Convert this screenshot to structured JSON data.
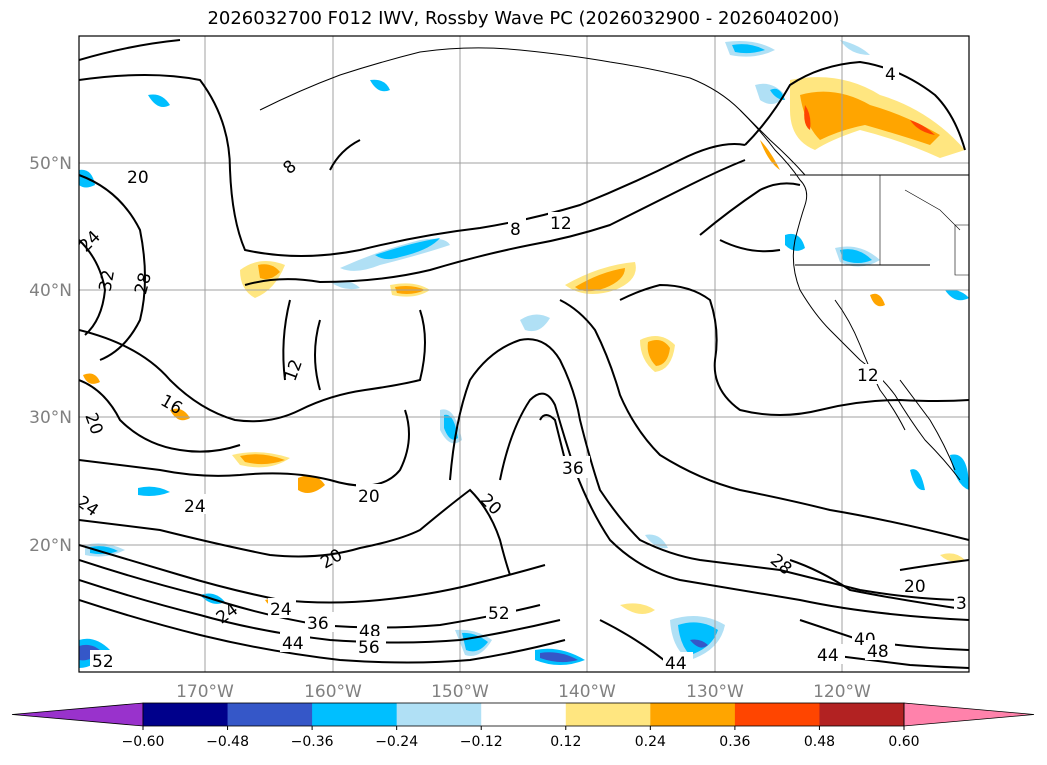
{
  "title": "2026032700 F012 IWV, Rossby Wave PC (2026032900 - 2026040200)",
  "lat_labels": [
    "50°N",
    "40°N",
    "30°N",
    "20°N"
  ],
  "lon_labels": [
    "170°W",
    "160°W",
    "150°W",
    "140°W",
    "130°W",
    "120°W"
  ],
  "contour_labels": [
    "4",
    "8",
    "8",
    "12",
    "20",
    "28",
    "32",
    "24",
    "12",
    "16",
    "20",
    "24",
    "24",
    "20",
    "20",
    "36",
    "20",
    "24",
    "24",
    "36",
    "52",
    "48",
    "44",
    "56",
    "52",
    "28",
    "20",
    "3",
    "40",
    "48",
    "44",
    "44",
    "12"
  ],
  "colorbar": {
    "ticks": [
      "−0.60",
      "−0.48",
      "−0.36",
      "−0.24",
      "−0.12",
      "0.12",
      "0.24",
      "0.36",
      "0.48",
      "0.60"
    ],
    "colors": [
      "#9932cc",
      "#00008b",
      "#3557c8",
      "#00bfff",
      "#b0e0f5",
      "#ffffff",
      "#ffe680",
      "#ffa500",
      "#ff4500",
      "#b22222",
      "#ff82ab"
    ]
  }
}
